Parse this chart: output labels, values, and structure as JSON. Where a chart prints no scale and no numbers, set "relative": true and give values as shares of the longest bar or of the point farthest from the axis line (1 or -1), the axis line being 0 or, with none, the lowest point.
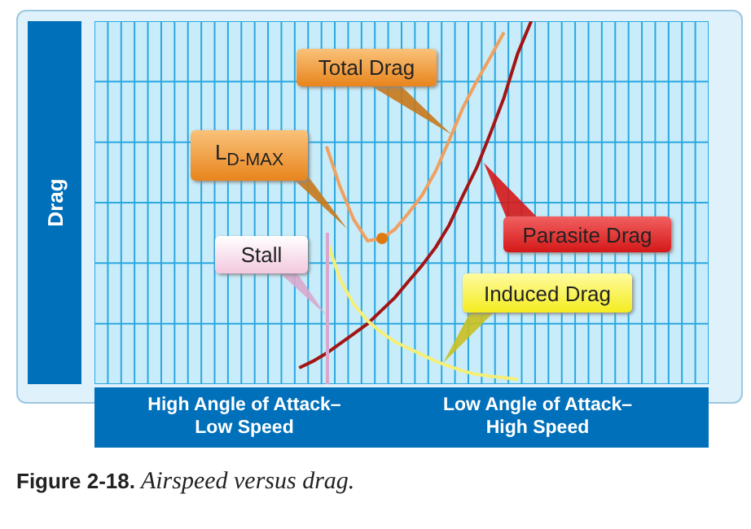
{
  "chart_data": {
    "type": "line",
    "relative": true,
    "grid": true,
    "marker": "none",
    "line_style": "solid",
    "ylabel": "Drag",
    "categories": [
      null,
      null,
      null,
      null,
      null,
      null,
      null,
      null,
      null,
      null,
      null,
      null,
      null,
      null,
      null,
      null,
      null,
      null,
      null,
      null,
      null,
      null,
      null,
      null,
      null,
      null,
      null,
      null,
      null,
      null,
      null,
      null,
      null,
      null,
      null,
      null,
      null,
      null,
      null,
      null,
      null,
      null,
      null,
      null,
      null,
      null
    ],
    "series": [
      {
        "color": "#f0a060",
        "values": [
          null,
          null,
          null,
          null,
          null,
          null,
          null,
          null,
          null,
          null,
          null,
          null,
          null,
          null,
          null,
          null,
          null,
          0.655,
          0.543,
          0.453,
          0.395,
          0.4,
          0.426,
          0.471,
          0.52,
          0.587,
          0.673,
          0.762,
          0.834,
          0.9,
          0.969,
          null,
          null,
          null,
          null,
          null,
          null,
          null,
          null,
          null,
          null,
          null,
          null,
          null,
          null,
          null
        ]
      },
      {
        "color": "#a31515",
        "values": [
          null,
          null,
          null,
          null,
          null,
          null,
          null,
          null,
          null,
          null,
          null,
          null,
          null,
          null,
          null,
          0.045,
          0.063,
          0.085,
          0.112,
          0.139,
          0.166,
          0.202,
          0.238,
          0.283,
          0.327,
          0.377,
          0.439,
          0.52,
          0.596,
          0.69,
          0.789,
          0.91,
          1.0,
          null,
          null,
          null,
          null,
          null,
          null,
          null,
          null,
          null,
          null,
          null,
          null,
          null
        ]
      },
      {
        "color": "#f5ef78",
        "values": [
          null,
          null,
          null,
          null,
          null,
          null,
          null,
          null,
          null,
          null,
          null,
          null,
          null,
          null,
          null,
          null,
          null,
          0.4,
          0.287,
          0.22,
          0.175,
          0.143,
          0.117,
          0.099,
          0.081,
          0.063,
          0.049,
          0.036,
          0.027,
          0.022,
          0.018,
          0.013,
          null,
          null,
          null,
          null,
          null,
          null,
          null,
          null,
          null,
          null,
          null,
          null,
          null,
          null
        ]
      }
    ],
    "annotations": [
      "Total Drag",
      "L$_{D-MAX}$",
      "Stall",
      "Parasite Drag",
      "Induced Drag",
      "High Angle of Attack–\nLow Speed",
      "Low Angle of Attack–\nHigh Speed",
      "Figure 2-18. Airspeed versus drag."
    ]
  }
}
